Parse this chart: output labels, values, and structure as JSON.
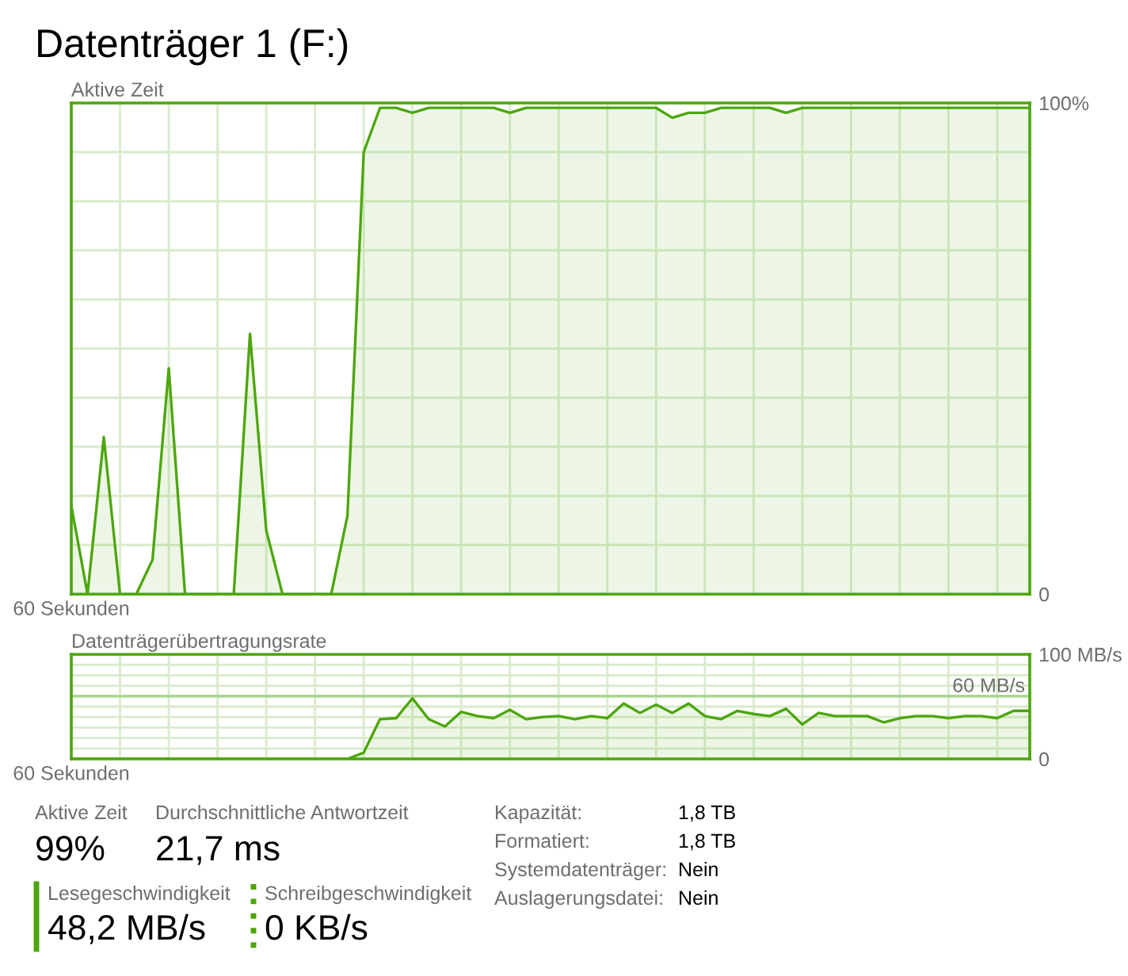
{
  "chart_data": [
    {
      "type": "area",
      "title": "Datenträger 1 (F:)",
      "subtitle": "Aktive Zeit",
      "categories": [
        "60 Sekunden",
        null,
        null,
        null,
        null,
        null,
        null,
        null,
        null,
        null,
        null,
        null,
        null,
        null,
        null,
        null,
        null,
        null,
        null,
        null,
        null,
        null,
        null,
        null,
        null,
        null,
        null,
        null,
        null,
        null,
        null,
        null,
        null,
        null,
        null,
        null,
        null,
        null,
        null,
        null,
        null,
        null,
        null,
        null,
        null,
        null,
        null,
        null,
        null,
        null,
        null,
        null,
        null,
        null,
        null,
        null,
        null,
        null,
        null,
        null
      ],
      "series": [
        {
          "color": "#4da60c",
          "values": [
            18,
            0,
            32,
            0,
            0,
            7,
            46,
            0,
            0,
            0,
            0,
            53,
            13,
            0,
            0,
            0,
            0,
            16,
            90,
            99,
            99,
            98,
            99,
            99,
            99,
            99,
            99,
            98,
            99,
            99,
            99,
            99,
            99,
            99,
            99,
            99,
            99,
            97,
            98,
            98,
            99,
            99,
            99,
            99,
            98,
            99,
            99,
            99,
            99,
            99,
            99,
            99,
            99,
            99,
            99,
            99,
            99,
            99,
            99,
            99
          ]
        }
      ],
      "ylim": [
        0,
        100
      ],
      "yticks": [
        0,
        {
          "value": 10,
          "label": null
        },
        {
          "value": 20,
          "label": null
        },
        {
          "value": 30,
          "label": null
        },
        {
          "value": 40,
          "label": null
        },
        {
          "value": 50,
          "label": null
        },
        {
          "value": 60,
          "label": null
        },
        {
          "value": 70,
          "label": null
        },
        {
          "value": 80,
          "label": null
        },
        {
          "value": 90,
          "label": null
        },
        {
          "value": 100,
          "label": "100%"
        }
      ],
      "grid": true
    },
    {
      "type": "area",
      "title": "Datenträgerübertragungsrate",
      "categories": [
        "60 Sekunden",
        null,
        null,
        null,
        null,
        null,
        null,
        null,
        null,
        null,
        null,
        null,
        null,
        null,
        null,
        null,
        null,
        null,
        null,
        null,
        null,
        null,
        null,
        null,
        null,
        null,
        null,
        null,
        null,
        null,
        null,
        null,
        null,
        null,
        null,
        null,
        null,
        null,
        null,
        null,
        null,
        null,
        null,
        null,
        null,
        null,
        null,
        null,
        null,
        null,
        null,
        null,
        null,
        null,
        null,
        null,
        null,
        null,
        null,
        null
      ],
      "series": [
        {
          "color": "#4da60c",
          "values": [
            0,
            0,
            0,
            0,
            0,
            0,
            0,
            0,
            0,
            0,
            0,
            0,
            0,
            0,
            0,
            0,
            0,
            0,
            6,
            38,
            39,
            58,
            38,
            31,
            45,
            41,
            39,
            47,
            38,
            40,
            41,
            38,
            41,
            39,
            53,
            44,
            52,
            44,
            53,
            41,
            38,
            46,
            43,
            41,
            48,
            33,
            44,
            41,
            41,
            41,
            35,
            39,
            41,
            41,
            39,
            41,
            41,
            39,
            46,
            46
          ]
        }
      ],
      "ylim": [
        0,
        100
      ],
      "yticks": [
        0,
        {
          "value": 10,
          "label": null
        },
        {
          "value": 20,
          "label": null
        },
        {
          "value": 30,
          "label": null
        },
        {
          "value": 40,
          "label": null
        },
        {
          "value": 50,
          "label": null
        },
        {
          "value": 60,
          "label": null
        },
        {
          "value": 70,
          "label": null
        },
        {
          "value": 80,
          "label": null
        },
        {
          "value": 90,
          "label": null
        },
        {
          "value": 100,
          "label": "100 MB/s"
        }
      ],
      "ref_lines": [
        {
          "axis": "y",
          "value": 60,
          "label": "60 MB/s",
          "color": "#a9d68f"
        }
      ],
      "grid": true
    },
    {
      "type": "other",
      "color": "#4da60c",
      "annotations": [
        "Aktive Zeit",
        "99%",
        "Durchschnittliche Antwortzeit",
        "21,7 ms",
        "Lesegeschwindigkeit",
        "48,2 MB/s",
        "Schreibgeschwindigkeit",
        "0 KB/s",
        "Kapazität:",
        "1,8 TB",
        "Formatiert:",
        "1,8 TB",
        "Systemdatenträger:",
        "Nein",
        "Auslagerungsdatei:",
        "Nein"
      ]
    }
  ]
}
